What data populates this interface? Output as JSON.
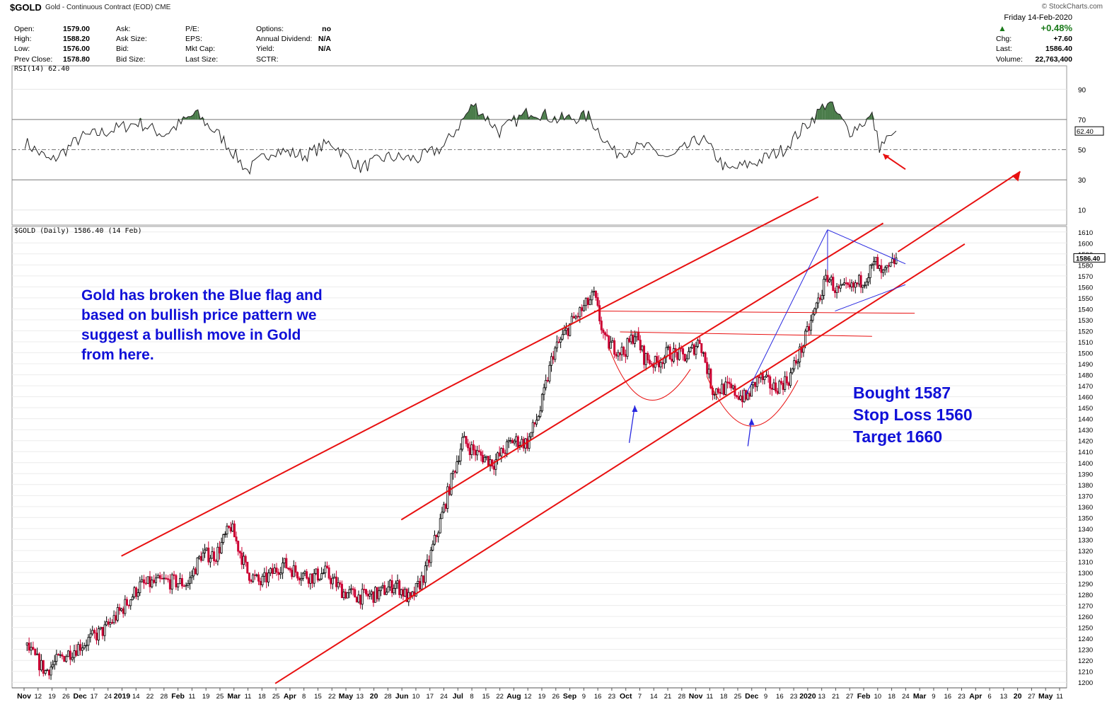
{
  "header": {
    "symbol": "$GOLD",
    "name": "Gold - Continuous Contract (EOD) CME",
    "date": "Friday  14-Feb-2020",
    "logo": "© StockCharts.com"
  },
  "quote": {
    "open_label": "Open:",
    "open": "1579.00",
    "high_label": "High:",
    "high": "1588.20",
    "low_label": "Low:",
    "low": "1576.00",
    "prev_label": "Prev Close:",
    "prev": "1578.80",
    "ask_label": "Ask:",
    "ask_size_label": "Ask Size:",
    "bid_label": "Bid:",
    "bid_size_label": "Bid Size:",
    "pe_label": "P/E:",
    "eps_label": "EPS:",
    "mktcap_label": "Mkt Cap:",
    "lastsize_label": "Last Size:",
    "options_label": "Options:",
    "options": "no",
    "dividend_label": "Annual Dividend:",
    "dividend": "N/A",
    "yield_label": "Yield:",
    "yield": "N/A",
    "sctr_label": "SCTR:",
    "change_pct": "+0.48%",
    "chg_label": "Chg:",
    "chg": "+7.60",
    "last_label": "Last:",
    "last": "1586.40",
    "volume_label": "Volume:",
    "volume": "22,763,400"
  },
  "annotations": {
    "note_lines": [
      "Gold has broken the Blue flag and",
      "based on bullish price pattern we",
      "suggest a bullish move in Gold",
      "from here."
    ],
    "trade_lines": [
      "Bought 1587",
      "Stop Loss 1560",
      "Target 1660"
    ]
  },
  "colors": {
    "up": "#000000",
    "down": "#cc0033",
    "trendline": "#e81010",
    "flag": "#2828e0",
    "annot_text": "#1010d8",
    "rsi_fill": "#4a7c4a"
  },
  "chart_data": [
    {
      "type": "line",
      "title": "RSI(14) 62.40",
      "yticks": [
        10,
        30,
        50,
        70,
        90
      ],
      "ylim": [
        0,
        100
      ],
      "last_value": "62.40",
      "x": [
        "2018-11-01",
        "2018-11-15",
        "2018-12-01",
        "2018-12-15",
        "2019-01-01",
        "2019-01-15",
        "2019-02-01",
        "2019-02-15",
        "2019-03-01",
        "2019-03-15",
        "2019-04-01",
        "2019-04-15",
        "2019-05-01",
        "2019-05-15",
        "2019-06-01",
        "2019-06-15",
        "2019-07-01",
        "2019-07-15",
        "2019-08-01",
        "2019-08-15",
        "2019-09-01",
        "2019-09-15",
        "2019-10-01",
        "2019-10-15",
        "2019-11-01",
        "2019-11-15",
        "2019-12-01",
        "2019-12-15",
        "2020-01-01",
        "2020-01-08",
        "2020-01-20",
        "2020-02-01",
        "2020-02-05",
        "2020-02-14"
      ],
      "values": [
        55,
        42,
        58,
        62,
        68,
        60,
        74,
        58,
        36,
        50,
        46,
        55,
        38,
        45,
        44,
        52,
        80,
        62,
        76,
        70,
        72,
        48,
        52,
        44,
        58,
        36,
        42,
        50,
        72,
        82,
        62,
        72,
        52,
        62.4
      ]
    },
    {
      "type": "candlestick",
      "title": "$GOLD (Daily) 1586.40 (14 Feb)",
      "last_value": "1586.40",
      "ylim": [
        1195,
        1615
      ],
      "yticks": [
        1200,
        1210,
        1220,
        1230,
        1240,
        1250,
        1260,
        1270,
        1280,
        1290,
        1300,
        1310,
        1320,
        1330,
        1340,
        1350,
        1360,
        1370,
        1380,
        1390,
        1400,
        1410,
        1420,
        1430,
        1440,
        1450,
        1460,
        1470,
        1480,
        1490,
        1500,
        1510,
        1520,
        1530,
        1540,
        1550,
        1560,
        1570,
        1580,
        1590,
        1600,
        1610
      ],
      "xticks": [
        "Nov",
        "12",
        "19",
        "26",
        "Dec",
        "17",
        "24",
        "2019",
        "14",
        "22",
        "28",
        "Feb",
        "11",
        "19",
        "25",
        "Mar",
        "11",
        "18",
        "25",
        "Apr",
        "8",
        "15",
        "22",
        "May",
        "13",
        "20",
        "28",
        "Jun",
        "10",
        "17",
        "24",
        "Jul",
        "8",
        "15",
        "22",
        "Aug",
        "12",
        "19",
        "26",
        "Sep",
        "9",
        "16",
        "23",
        "Oct",
        "7",
        "14",
        "21",
        "28",
        "Nov",
        "11",
        "18",
        "25",
        "Dec",
        "9",
        "16",
        "23",
        "2020",
        "13",
        "21",
        "27",
        "Feb",
        "10",
        "18",
        "24",
        "Mar",
        "9",
        "16",
        "23",
        "Apr",
        "6",
        "13",
        "20",
        "27",
        "May",
        "11"
      ],
      "price_path": [
        [
          "2018-11-01",
          1234
        ],
        [
          "2018-11-12",
          1210
        ],
        [
          "2018-11-20",
          1222
        ],
        [
          "2018-12-03",
          1236
        ],
        [
          "2018-12-14",
          1248
        ],
        [
          "2018-12-24",
          1268
        ],
        [
          "2019-01-02",
          1288
        ],
        [
          "2019-01-15",
          1292
        ],
        [
          "2019-01-28",
          1290
        ],
        [
          "2019-02-04",
          1316
        ],
        [
          "2019-02-12",
          1316
        ],
        [
          "2019-02-20",
          1342
        ],
        [
          "2019-03-01",
          1300
        ],
        [
          "2019-03-08",
          1290
        ],
        [
          "2019-03-20",
          1308
        ],
        [
          "2019-03-28",
          1300
        ],
        [
          "2019-04-05",
          1296
        ],
        [
          "2019-04-12",
          1300
        ],
        [
          "2019-04-22",
          1282
        ],
        [
          "2019-05-01",
          1278
        ],
        [
          "2019-05-10",
          1280
        ],
        [
          "2019-05-20",
          1290
        ],
        [
          "2019-05-28",
          1274
        ],
        [
          "2019-06-05",
          1300
        ],
        [
          "2019-06-12",
          1340
        ],
        [
          "2019-06-20",
          1390
        ],
        [
          "2019-06-25",
          1420
        ],
        [
          "2019-07-03",
          1408
        ],
        [
          "2019-07-12",
          1400
        ],
        [
          "2019-07-22",
          1420
        ],
        [
          "2019-07-30",
          1418
        ],
        [
          "2019-08-06",
          1448
        ],
        [
          "2019-08-13",
          1500
        ],
        [
          "2019-08-23",
          1528
        ],
        [
          "2019-09-04",
          1552
        ],
        [
          "2019-09-10",
          1510
        ],
        [
          "2019-09-20",
          1500
        ],
        [
          "2019-09-26",
          1518
        ],
        [
          "2019-10-01",
          1496
        ],
        [
          "2019-10-07",
          1490
        ],
        [
          "2019-10-14",
          1500
        ],
        [
          "2019-10-24",
          1496
        ],
        [
          "2019-10-31",
          1512
        ],
        [
          "2019-11-07",
          1466
        ],
        [
          "2019-11-15",
          1468
        ],
        [
          "2019-11-25",
          1458
        ],
        [
          "2019-12-02",
          1478
        ],
        [
          "2019-12-10",
          1468
        ],
        [
          "2019-12-18",
          1476
        ],
        [
          "2019-12-26",
          1508
        ],
        [
          "2020-01-03",
          1548
        ],
        [
          "2020-01-08",
          1570
        ],
        [
          "2020-01-13",
          1556
        ],
        [
          "2020-01-21",
          1558
        ],
        [
          "2020-01-29",
          1570
        ],
        [
          "2020-02-03",
          1582
        ],
        [
          "2020-02-06",
          1570
        ],
        [
          "2020-02-10",
          1575
        ],
        [
          "2020-02-14",
          1586.4
        ]
      ],
      "levels": [
        {
          "label": "resistance-1",
          "value": 1538
        },
        {
          "label": "neckline",
          "value": 1517
        }
      ]
    }
  ]
}
